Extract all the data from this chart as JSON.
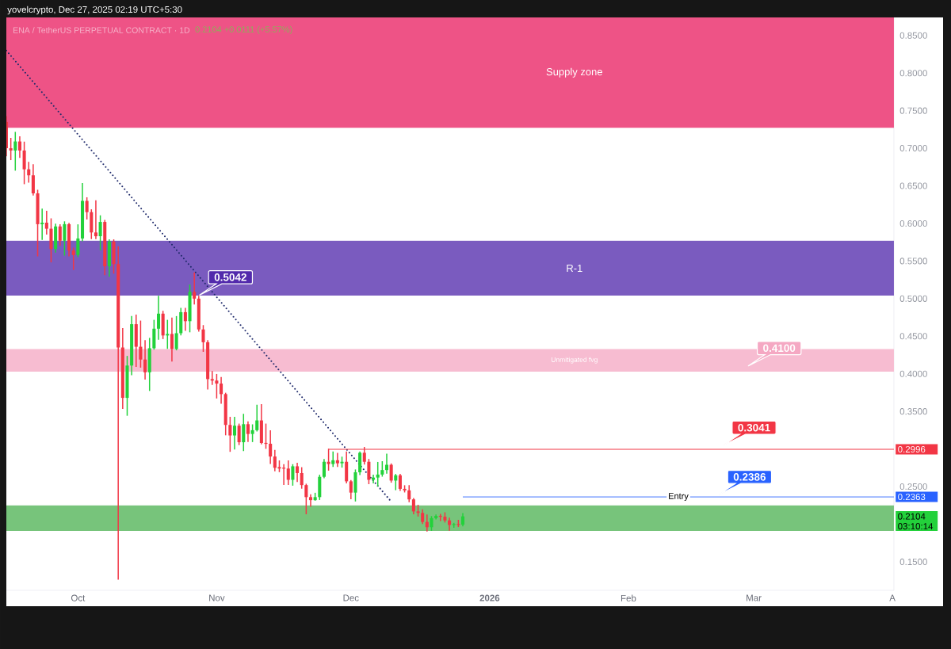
{
  "chart_data": {
    "type": "candlestick",
    "title": "ENA / TetherUS PERPETUAL CONTRACT · 1D",
    "subtitle": "0.2104 +0.0111 (+5.57%)",
    "annotations": [
      "yovelcrypto, Dec 27, 2025 02:19 UTC+5:30",
      "03:10:14",
      "0.4100",
      {
        "text": "0.5042",
        "x": "2025-10-28",
        "y": 0.5042
      },
      {
        "text": "0.3041",
        "x": "2026-02-22",
        "y": 0.3041
      },
      {
        "text": "0.2386",
        "x": "2026-02-21",
        "y": 0.2386
      }
    ],
    "x": [
      "2025-09-15",
      "2025-09-16",
      "2025-09-17",
      "2025-09-18",
      "2025-09-19",
      "2025-09-20",
      "2025-09-21",
      "2025-09-22",
      "2025-09-23",
      "2025-09-24",
      "2025-09-25",
      "2025-09-26",
      "2025-09-27",
      "2025-09-28",
      "2025-09-29",
      "2025-09-30",
      "2025-10-01",
      "2025-10-02",
      "2025-10-03",
      "2025-10-04",
      "2025-10-05",
      "2025-10-06",
      "2025-10-07",
      "2025-10-08",
      "2025-10-09",
      "2025-10-10",
      "2025-10-11",
      "2025-10-12",
      "2025-10-13",
      "2025-10-14",
      "2025-10-15",
      "2025-10-16",
      "2025-10-17",
      "2025-10-18",
      "2025-10-19",
      "2025-10-20",
      "2025-10-21",
      "2025-10-22",
      "2025-10-23",
      "2025-10-24",
      "2025-10-25",
      "2025-10-26",
      "2025-10-27",
      "2025-10-28",
      "2025-10-29",
      "2025-10-30",
      "2025-10-31",
      "2025-11-01",
      "2025-11-02",
      "2025-11-03",
      "2025-11-04",
      "2025-11-05",
      "2025-11-06",
      "2025-11-07",
      "2025-11-08",
      "2025-11-09",
      "2025-11-10",
      "2025-11-11",
      "2025-11-12",
      "2025-11-13",
      "2025-11-14",
      "2025-11-15",
      "2025-11-16",
      "2025-11-17",
      "2025-11-18",
      "2025-11-19",
      "2025-11-20",
      "2025-11-21",
      "2025-11-22",
      "2025-11-23",
      "2025-11-24",
      "2025-11-25",
      "2025-11-26",
      "2025-11-27",
      "2025-11-28",
      "2025-11-29",
      "2025-11-30",
      "2025-12-01",
      "2025-12-02",
      "2025-12-03",
      "2025-12-04",
      "2025-12-05",
      "2025-12-06",
      "2025-12-07",
      "2025-12-08",
      "2025-12-09",
      "2025-12-10",
      "2025-12-11",
      "2025-12-12",
      "2025-12-13",
      "2025-12-14",
      "2025-12-15",
      "2025-12-16",
      "2025-12-17",
      "2025-12-18",
      "2025-12-19",
      "2025-12-20",
      "2025-12-21",
      "2025-12-22",
      "2025-12-23",
      "2025-12-24",
      "2025-12-25",
      "2025-12-26"
    ],
    "ohlc": [
      [
        0.735,
        0.742,
        0.69,
        0.7
      ],
      [
        0.7,
        0.713,
        0.685,
        0.697
      ],
      [
        0.697,
        0.721,
        0.671,
        0.709
      ],
      [
        0.709,
        0.715,
        0.688,
        0.697
      ],
      [
        0.697,
        0.708,
        0.653,
        0.672
      ],
      [
        0.672,
        0.681,
        0.655,
        0.664
      ],
      [
        0.664,
        0.678,
        0.638,
        0.64
      ],
      [
        0.64,
        0.644,
        0.557,
        0.599
      ],
      [
        0.599,
        0.619,
        0.579,
        0.601
      ],
      [
        0.601,
        0.616,
        0.586,
        0.593
      ],
      [
        0.593,
        0.606,
        0.549,
        0.566
      ],
      [
        0.566,
        0.599,
        0.562,
        0.596
      ],
      [
        0.596,
        0.598,
        0.571,
        0.577
      ],
      [
        0.577,
        0.602,
        0.558,
        0.599
      ],
      [
        0.599,
        0.6,
        0.557,
        0.564
      ],
      [
        0.564,
        0.567,
        0.539,
        0.558
      ],
      [
        0.558,
        0.598,
        0.556,
        0.58
      ],
      [
        0.58,
        0.653,
        0.577,
        0.63
      ],
      [
        0.63,
        0.634,
        0.606,
        0.615
      ],
      [
        0.615,
        0.618,
        0.58,
        0.588
      ],
      [
        0.588,
        0.63,
        0.58,
        0.583
      ],
      [
        0.583,
        0.61,
        0.565,
        0.602
      ],
      [
        0.602,
        0.604,
        0.532,
        0.543
      ],
      [
        0.543,
        0.578,
        0.53,
        0.576
      ],
      [
        0.576,
        0.578,
        0.534,
        0.546
      ],
      [
        0.546,
        0.569,
        0.127,
        0.435
      ],
      [
        0.435,
        0.46,
        0.354,
        0.368
      ],
      [
        0.368,
        0.423,
        0.345,
        0.411
      ],
      [
        0.411,
        0.476,
        0.399,
        0.466
      ],
      [
        0.466,
        0.478,
        0.41,
        0.436
      ],
      [
        0.436,
        0.47,
        0.409,
        0.419
      ],
      [
        0.419,
        0.444,
        0.393,
        0.402
      ],
      [
        0.402,
        0.447,
        0.378,
        0.434
      ],
      [
        0.434,
        0.471,
        0.433,
        0.46
      ],
      [
        0.46,
        0.503,
        0.446,
        0.48
      ],
      [
        0.48,
        0.483,
        0.447,
        0.451
      ],
      [
        0.451,
        0.471,
        0.434,
        0.453
      ],
      [
        0.453,
        0.474,
        0.417,
        0.433
      ],
      [
        0.433,
        0.476,
        0.432,
        0.454
      ],
      [
        0.454,
        0.487,
        0.452,
        0.482
      ],
      [
        0.482,
        0.487,
        0.458,
        0.47
      ],
      [
        0.47,
        0.518,
        0.456,
        0.509
      ],
      [
        0.509,
        0.534,
        0.493,
        0.5
      ],
      [
        0.5,
        0.503,
        0.457,
        0.459
      ],
      [
        0.459,
        0.464,
        0.43,
        0.442
      ],
      [
        0.442,
        0.444,
        0.38,
        0.393
      ],
      [
        0.393,
        0.403,
        0.386,
        0.391
      ],
      [
        0.391,
        0.399,
        0.368,
        0.387
      ],
      [
        0.387,
        0.395,
        0.361,
        0.373
      ],
      [
        0.373,
        0.374,
        0.319,
        0.332
      ],
      [
        0.332,
        0.342,
        0.297,
        0.318
      ],
      [
        0.318,
        0.342,
        0.3,
        0.331
      ],
      [
        0.331,
        0.333,
        0.306,
        0.309
      ],
      [
        0.309,
        0.346,
        0.298,
        0.333
      ],
      [
        0.333,
        0.336,
        0.31,
        0.32
      ],
      [
        0.32,
        0.332,
        0.31,
        0.325
      ],
      [
        0.325,
        0.358,
        0.324,
        0.338
      ],
      [
        0.338,
        0.359,
        0.307,
        0.308
      ],
      [
        0.308,
        0.333,
        0.301,
        0.307
      ],
      [
        0.307,
        0.324,
        0.281,
        0.29
      ],
      [
        0.29,
        0.298,
        0.271,
        0.275
      ],
      [
        0.276,
        0.284,
        0.27,
        0.274
      ],
      [
        0.275,
        0.279,
        0.253,
        0.274
      ],
      [
        0.274,
        0.284,
        0.253,
        0.259
      ],
      [
        0.259,
        0.279,
        0.252,
        0.277
      ],
      [
        0.277,
        0.281,
        0.257,
        0.268
      ],
      [
        0.268,
        0.275,
        0.248,
        0.252
      ],
      [
        0.252,
        0.253,
        0.214,
        0.236
      ],
      [
        0.236,
        0.239,
        0.224,
        0.232
      ],
      [
        0.232,
        0.241,
        0.232,
        0.236
      ],
      [
        0.236,
        0.265,
        0.233,
        0.263
      ],
      [
        0.263,
        0.286,
        0.262,
        0.283
      ],
      [
        0.283,
        0.2996,
        0.272,
        0.28
      ],
      [
        0.28,
        0.296,
        0.277,
        0.285
      ],
      [
        0.285,
        0.294,
        0.277,
        0.281
      ],
      [
        0.281,
        0.289,
        0.276,
        0.283
      ],
      [
        0.283,
        0.296,
        0.255,
        0.257
      ],
      [
        0.257,
        0.258,
        0.234,
        0.242
      ],
      [
        0.242,
        0.272,
        0.231,
        0.269
      ],
      [
        0.269,
        0.296,
        0.266,
        0.295
      ],
      [
        0.295,
        0.302,
        0.28,
        0.283
      ],
      [
        0.283,
        0.286,
        0.254,
        0.259
      ],
      [
        0.259,
        0.265,
        0.255,
        0.262
      ],
      [
        0.262,
        0.282,
        0.251,
        0.266
      ],
      [
        0.266,
        0.283,
        0.264,
        0.272
      ],
      [
        0.272,
        0.293,
        0.268,
        0.279
      ],
      [
        0.279,
        0.28,
        0.256,
        0.258
      ],
      [
        0.258,
        0.266,
        0.246,
        0.265
      ],
      [
        0.265,
        0.266,
        0.245,
        0.247
      ],
      [
        0.247,
        0.251,
        0.243,
        0.245
      ],
      [
        0.245,
        0.251,
        0.23,
        0.233
      ],
      [
        0.233,
        0.234,
        0.214,
        0.217
      ],
      [
        0.217,
        0.225,
        0.211,
        0.215
      ],
      [
        0.215,
        0.219,
        0.201,
        0.203
      ],
      [
        0.203,
        0.212,
        0.191,
        0.196
      ],
      [
        0.196,
        0.21,
        0.192,
        0.208
      ],
      [
        0.208,
        0.212,
        0.207,
        0.211
      ],
      [
        0.211,
        0.213,
        0.205,
        0.21
      ],
      [
        0.21,
        0.215,
        0.203,
        0.205
      ],
      [
        0.205,
        0.208,
        0.192,
        0.199
      ],
      [
        0.199,
        0.201,
        0.196,
        0.2
      ],
      [
        0.2,
        0.205,
        0.197,
        0.1993
      ],
      [
        0.1993,
        0.214,
        0.198,
        0.2104
      ]
    ],
    "colors": [
      "#f23645",
      "#f23645",
      "#23d13b",
      "#f23645",
      "#f23645",
      "#f23645",
      "#f23645",
      "#f23645",
      "#23d13b",
      "#f23645",
      "#f23645",
      "#23d13b",
      "#f23645",
      "#23d13b",
      "#f23645",
      "#f23645",
      "#23d13b",
      "#23d13b",
      "#f23645",
      "#f23645",
      "#f23645",
      "#23d13b",
      "#f23645",
      "#23d13b",
      "#f23645",
      "#f23645",
      "#f23645",
      "#23d13b",
      "#23d13b",
      "#f23645",
      "#f23645",
      "#f23645",
      "#23d13b",
      "#23d13b",
      "#23d13b",
      "#f23645",
      "#23d13b",
      "#f23645",
      "#23d13b",
      "#23d13b",
      "#f23645",
      "#23d13b",
      "#f23645",
      "#f23645",
      "#f23645",
      "#f23645",
      "#f23645",
      "#f23645",
      "#f23645",
      "#f23645",
      "#f23645",
      "#23d13b",
      "#f23645",
      "#23d13b",
      "#f23645",
      "#23d13b",
      "#23d13b",
      "#f23645",
      "#f23645",
      "#f23645",
      "#f23645",
      "#f23645",
      "#f23645",
      "#f23645",
      "#23d13b",
      "#f23645",
      "#f23645",
      "#f23645",
      "#f23645",
      "#23d13b",
      "#23d13b",
      "#23d13b",
      "#f23645",
      "#23d13b",
      "#f23645",
      "#23d13b",
      "#f23645",
      "#f23645",
      "#23d13b",
      "#23d13b",
      "#f23645",
      "#f23645",
      "#23d13b",
      "#23d13b",
      "#23d13b",
      "#23d13b",
      "#f23645",
      "#23d13b",
      "#f23645",
      "#f23645",
      "#f23645",
      "#f23645",
      "#f23645",
      "#f23645",
      "#f23645",
      "#23d13b",
      "#23d13b",
      "#f23645",
      "#f23645",
      "#f23645",
      "#23d13b",
      "#f23645",
      "#23d13b"
    ],
    "series": [
      {
        "type": "line",
        "x": [
          "2025-09-15",
          "2025-12-10"
        ],
        "values": [
          0.83,
          0.23
        ],
        "color": "#1f2a6b",
        "line_style": "dotted"
      },
      {
        "type": "line",
        "x": [
          "2025-11-26",
          "2026-04-01T08:00"
        ],
        "values": [
          0.2996,
          0.2996
        ],
        "color": "#f23645"
      },
      {
        "type": "line",
        "name": "Entry",
        "x": [
          "2025-12-26",
          "2026-04-01T08:00"
        ],
        "values": [
          0.2363,
          0.2363
        ],
        "color": "#2962ff"
      }
    ],
    "bands": [
      {
        "axis": "y",
        "from": 0.727,
        "to": 0.874,
        "label": "Supply zone",
        "color": "#ee5386"
      },
      {
        "axis": "y",
        "from": 0.504,
        "to": 0.577,
        "label": "R-1",
        "color": "#7a5bbf"
      },
      {
        "axis": "y",
        "from": 0.403,
        "to": 0.433,
        "label": "Unmitigated fvg",
        "color": "#f7bcd1"
      },
      {
        "axis": "y",
        "from": 0.191,
        "to": 0.225,
        "color": "#77c47b"
      }
    ],
    "xlim": [
      "2025-09-15",
      "2026-04-01T08:00"
    ],
    "ylim": [
      0.112,
      0.874
    ],
    "xticks": [
      {
        "value": "2025-10-01",
        "label": "Oct"
      },
      {
        "value": "2025-11-01",
        "label": "Nov"
      },
      {
        "value": "2025-12-01",
        "label": "Dec"
      },
      {
        "value": "2026-01-01",
        "label": "2026"
      },
      {
        "value": "2026-02-01",
        "label": "Feb"
      },
      {
        "value": "2026-03-01",
        "label": "Mar"
      },
      {
        "value": "2026-04-01",
        "label": "A"
      }
    ],
    "yticks": [
      {
        "value": 0.15,
        "label": "0.1500"
      },
      0.2104,
      0.2363,
      {
        "value": 0.25,
        "label": "0.2500"
      },
      0.2996,
      {
        "value": 0.35,
        "label": "0.3500"
      },
      {
        "value": 0.4,
        "label": "0.4000"
      },
      {
        "value": 0.45,
        "label": "0.4500"
      },
      {
        "value": 0.5,
        "label": "0.5000"
      },
      {
        "value": 0.55,
        "label": "0.5500"
      },
      {
        "value": 0.6,
        "label": "0.6000"
      },
      {
        "value": 0.65,
        "label": "0.6500"
      },
      {
        "value": 0.7,
        "label": "0.7000"
      },
      {
        "value": 0.75,
        "label": "0.7500"
      },
      {
        "value": 0.8,
        "label": "0.8000"
      },
      {
        "value": 0.85,
        "label": "0.8500"
      }
    ]
  }
}
